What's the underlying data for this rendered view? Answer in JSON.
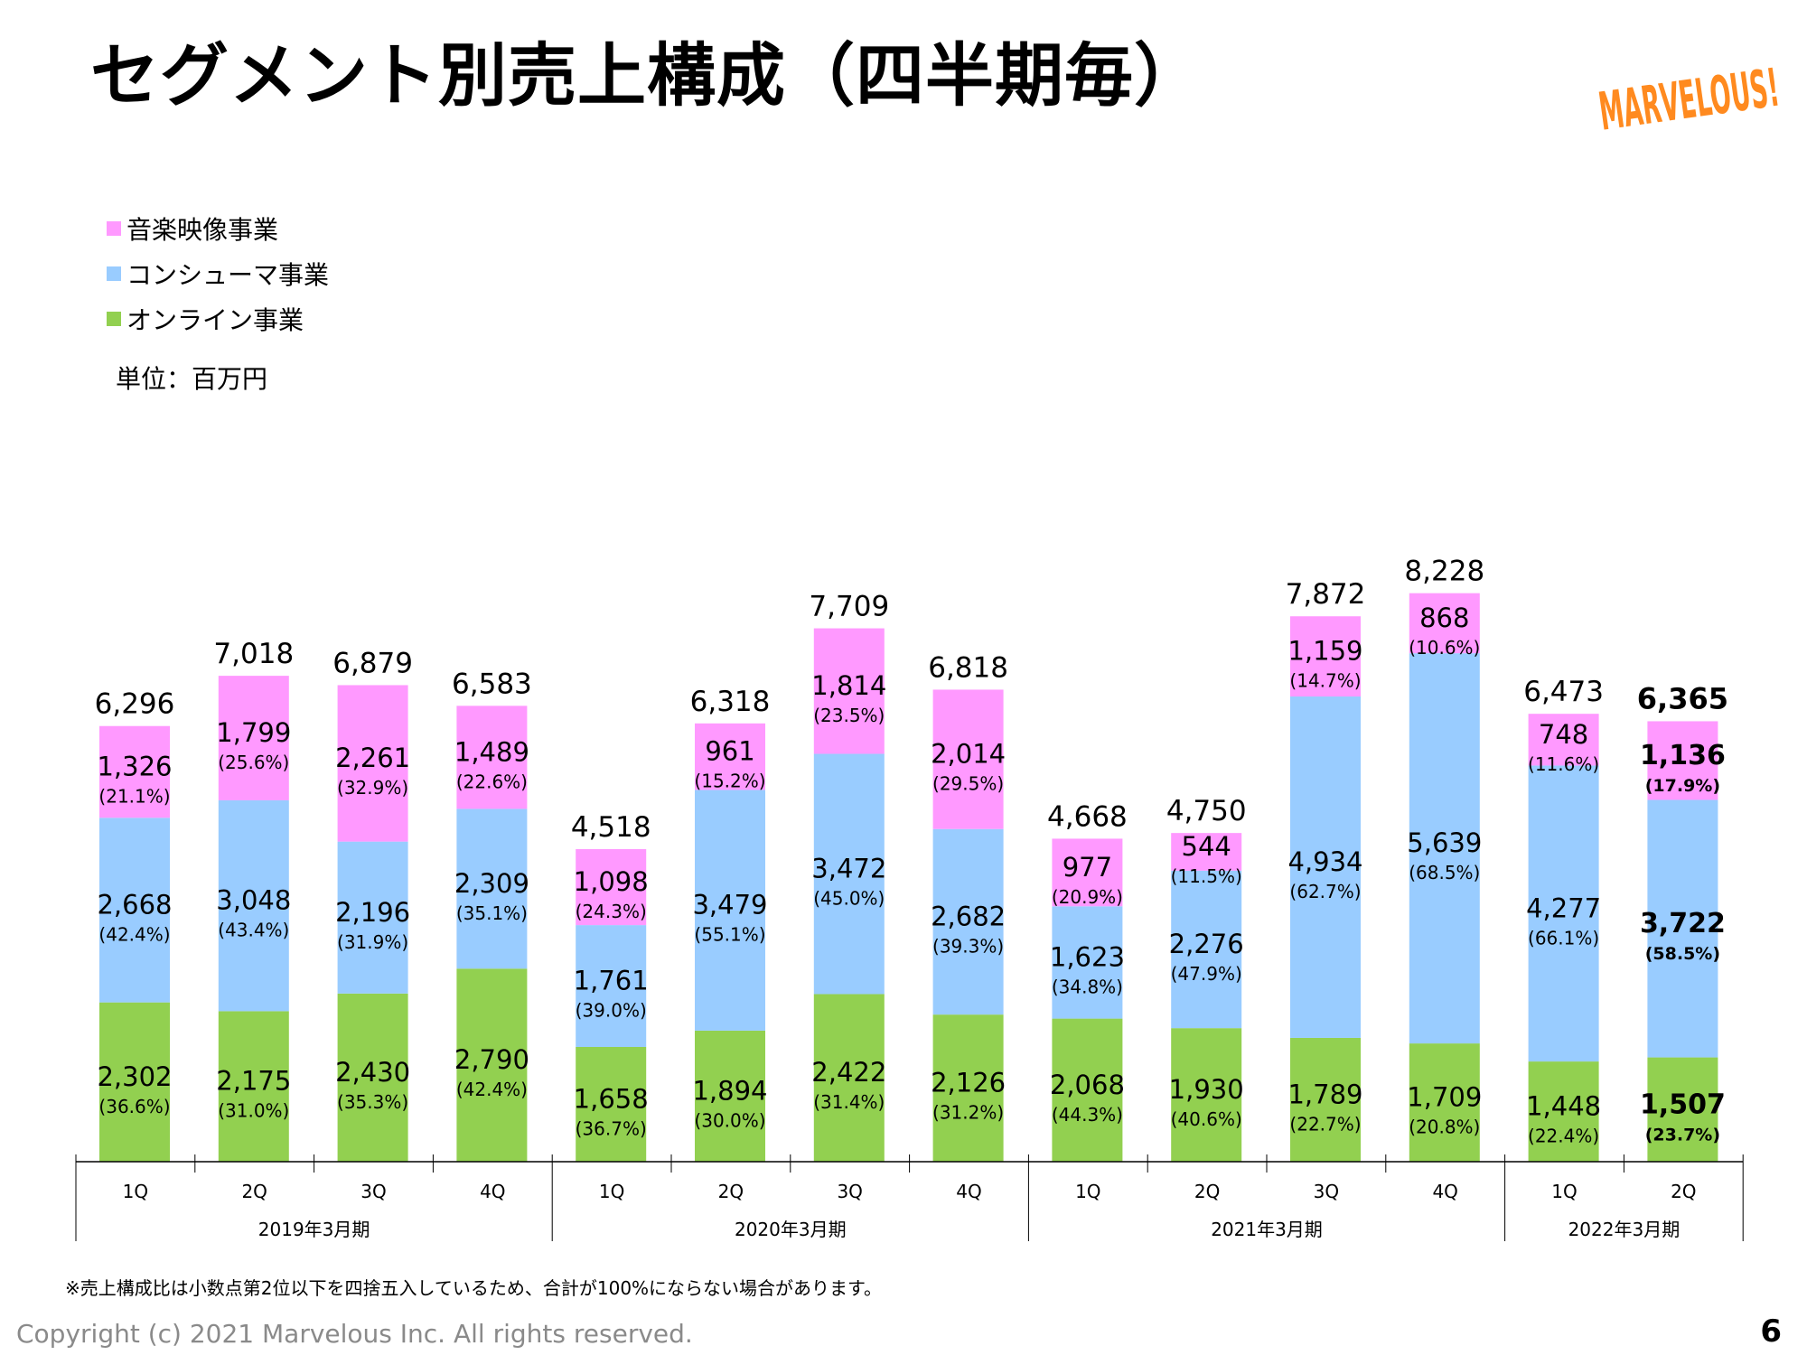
{
  "page": {
    "title": "セグメント別売上構成（四半期毎）",
    "unit": "単位：百万円",
    "note": "※売上構成比は小数点第2位以下を四捨五入しているため、合計が100%にならない場合があります。",
    "copyright": "Copyright (c) 2021 Marvelous Inc. All rights reserved.",
    "page_number": "6",
    "logo_text": "MARVELOUS!"
  },
  "legend": [
    {
      "label": "音楽映像事業",
      "color": "#ff99ff"
    },
    {
      "label": "コンシューマ事業",
      "color": "#99ccff"
    },
    {
      "label": "オンライン事業",
      "color": "#92d050"
    }
  ],
  "chart_data": {
    "type": "bar",
    "stacked": true,
    "unit": "百万円",
    "categories": [
      "1Q",
      "2Q",
      "3Q",
      "4Q",
      "1Q",
      "2Q",
      "3Q",
      "4Q",
      "1Q",
      "2Q",
      "3Q",
      "4Q",
      "1Q",
      "2Q"
    ],
    "groups": [
      {
        "label": "2019年3月期",
        "span": 4
      },
      {
        "label": "2020年3月期",
        "span": 4
      },
      {
        "label": "2021年3月期",
        "span": 4
      },
      {
        "label": "2022年3月期",
        "span": 2
      }
    ],
    "series": [
      {
        "name": "オンライン事業",
        "color": "#92d050",
        "values": [
          2302,
          2175,
          2430,
          2790,
          1658,
          1894,
          2422,
          2126,
          2068,
          1930,
          1789,
          1709,
          1448,
          1507
        ],
        "values_label": [
          "2,302",
          "2,175",
          "2,430",
          "2,790",
          "1,658",
          "1,894",
          "2,422",
          "2,126",
          "2,068",
          "1,930",
          "1,789",
          "1,709",
          "1,448",
          "1,507"
        ],
        "shares": [
          "(36.6%)",
          "(31.0%)",
          "(35.3%)",
          "(42.4%)",
          "(36.7%)",
          "(30.0%)",
          "(31.4%)",
          "(31.2%)",
          "(44.3%)",
          "(40.6%)",
          "(22.7%)",
          "(20.8%)",
          "(22.4%)",
          "(23.7%)"
        ]
      },
      {
        "name": "コンシューマ事業",
        "color": "#99ccff",
        "values": [
          2668,
          3048,
          2196,
          2309,
          1761,
          3479,
          3472,
          2682,
          1623,
          2276,
          4934,
          5639,
          4277,
          3722
        ],
        "values_label": [
          "2,668",
          "3,048",
          "2,196",
          "2,309",
          "1,761",
          "3,479",
          "3,472",
          "2,682",
          "1,623",
          "2,276",
          "4,934",
          "5,639",
          "4,277",
          "3,722"
        ],
        "shares": [
          "(42.4%)",
          "(43.4%)",
          "(31.9%)",
          "(35.1%)",
          "(39.0%)",
          "(55.1%)",
          "(45.0%)",
          "(39.3%)",
          "(34.8%)",
          "(47.9%)",
          "(62.7%)",
          "(68.5%)",
          "(66.1%)",
          "(58.5%)"
        ]
      },
      {
        "name": "音楽映像事業",
        "color": "#ff99ff",
        "values": [
          1326,
          1799,
          2261,
          1489,
          1098,
          961,
          1814,
          2014,
          977,
          544,
          1159,
          868,
          748,
          1136
        ],
        "values_label": [
          "1,326",
          "1,799",
          "2,261",
          "1,489",
          "1,098",
          "961",
          "1,814",
          "2,014",
          "977",
          "544",
          "1,159",
          "868",
          "748",
          "1,136"
        ],
        "shares": [
          "(21.1%)",
          "(25.6%)",
          "(32.9%)",
          "(22.6%)",
          "(24.3%)",
          "(15.2%)",
          "(23.5%)",
          "(29.5%)",
          "(20.9%)",
          "(11.5%)",
          "(14.7%)",
          "(10.6%)",
          "(11.6%)",
          "(17.9%)"
        ]
      }
    ],
    "totals": [
      6296,
      7018,
      6879,
      6583,
      4518,
      6318,
      7709,
      6818,
      4668,
      4750,
      7872,
      8228,
      6473,
      6365
    ],
    "totals_label": [
      "6,296",
      "7,018",
      "6,879",
      "6,583",
      "4,518",
      "6,318",
      "7,709",
      "6,818",
      "4,668",
      "4,750",
      "7,872",
      "8,228",
      "6,473",
      "6,365"
    ],
    "highlight_last": true,
    "ylim": [
      0,
      8300
    ]
  }
}
